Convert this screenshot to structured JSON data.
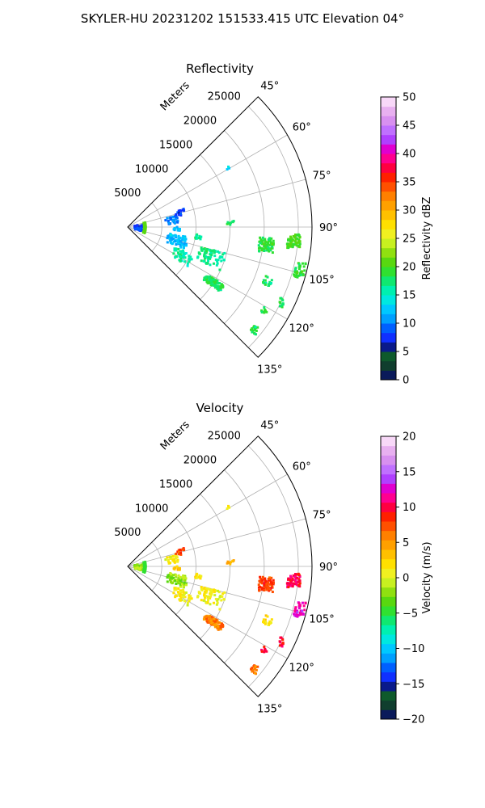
{
  "suptitle": "SKYLER-HU  20231202  151533.415 UTC Elevation 04°",
  "chart_data": [
    {
      "type": "polar-sector-scatter",
      "title": "Reflectivity",
      "radial_label": "Meters",
      "radial_ticks": [
        5000,
        10000,
        15000,
        20000,
        25000
      ],
      "radial_tick_labels": [
        "5000",
        "10000",
        "15000",
        "20000",
        "25000"
      ],
      "rlim": [
        0,
        27000
      ],
      "theta_lim_deg": [
        45,
        135
      ],
      "theta_zero": "north",
      "theta_direction": "clockwise",
      "theta_ticks_deg": [
        45,
        60,
        75,
        90,
        105,
        120,
        135
      ],
      "theta_tick_labels": [
        "45°",
        "60°",
        "75°",
        "90°",
        "105°",
        "120°",
        "135°"
      ],
      "grid": true,
      "colorbar": {
        "label": "Reflectivity dBZ",
        "vmin": 0,
        "vmax": 50,
        "ticks": [
          0,
          5,
          10,
          15,
          20,
          25,
          30,
          35,
          40,
          45,
          50
        ],
        "tick_labels": [
          "0",
          "5",
          "10",
          "15",
          "20",
          "25",
          "30",
          "35",
          "40",
          "45",
          "50"
        ],
        "colors": [
          "#0a1a5a",
          "#103e2e",
          "#0e5a2c",
          "#0a1a8a",
          "#1030ff",
          "#0060ff",
          "#00a0ff",
          "#00c8ff",
          "#00e8e0",
          "#00f0b0",
          "#10e870",
          "#30e030",
          "#58d810",
          "#90e010",
          "#c8f020",
          "#f0f020",
          "#ffe000",
          "#ffc000",
          "#ffa000",
          "#ff8000",
          "#ff5000",
          "#ff2000",
          "#ff0040",
          "#ff0090",
          "#e000d0",
          "#b040ff",
          "#c070ff",
          "#d890f0",
          "#e8b0f0",
          "#f8d8f8"
        ]
      },
      "clusters": [
        {
          "theta": 97.5,
          "r": 20500,
          "dr": 1100,
          "dt": 3.0,
          "n": 70,
          "v": 19
        },
        {
          "theta": 95,
          "r": 24500,
          "dr": 1000,
          "dt": 2.5,
          "n": 60,
          "v": 20
        },
        {
          "theta": 104,
          "r": 26000,
          "dr": 700,
          "dt": 2.5,
          "n": 40,
          "v": 19
        },
        {
          "theta": 111,
          "r": 22000,
          "dr": 600,
          "dt": 2.0,
          "n": 18,
          "v": 18
        },
        {
          "theta": 116,
          "r": 25000,
          "dr": 500,
          "dt": 1.5,
          "n": 12,
          "v": 18
        },
        {
          "theta": 121,
          "r": 23500,
          "dr": 400,
          "dt": 1.5,
          "n": 10,
          "v": 19
        },
        {
          "theta": 123,
          "r": 15000,
          "dr": 1500,
          "dt": 2.0,
          "n": 90,
          "v": 18
        },
        {
          "theta": 129,
          "r": 24000,
          "dr": 500,
          "dt": 1.5,
          "n": 18,
          "v": 18
        },
        {
          "theta": 110,
          "r": 13000,
          "dr": 2000,
          "dt": 5.0,
          "n": 70,
          "v": 17
        },
        {
          "theta": 105,
          "r": 7500,
          "dr": 1500,
          "dt": 6.0,
          "n": 80,
          "v": 12
        },
        {
          "theta": 118,
          "r": 9000,
          "dr": 1500,
          "dt": 5.0,
          "n": 45,
          "v": 16
        },
        {
          "theta": 98,
          "r": 10500,
          "dr": 500,
          "dt": 2.0,
          "n": 12,
          "v": 17
        },
        {
          "theta": 81,
          "r": 6500,
          "dr": 900,
          "dt": 5.0,
          "n": 30,
          "v": 10
        },
        {
          "theta": 75,
          "r": 8000,
          "dr": 700,
          "dt": 3.0,
          "n": 14,
          "v": 8
        },
        {
          "theta": 93,
          "r": 1800,
          "dr": 800,
          "dt": 14.0,
          "n": 70,
          "v": 8
        },
        {
          "theta": 88,
          "r": 15000,
          "dr": 600,
          "dt": 1.5,
          "n": 8,
          "v": 18
        },
        {
          "theta": 60,
          "r": 17000,
          "dr": 300,
          "dt": 1.0,
          "n": 3,
          "v": 14
        },
        {
          "theta": 92,
          "r": 7200,
          "dr": 500,
          "dt": 2.0,
          "n": 10,
          "v": 12
        }
      ],
      "range_ring": {
        "r": 2400,
        "theta_min": 75,
        "theta_max": 112,
        "v": 20
      }
    },
    {
      "type": "polar-sector-scatter",
      "title": "Velocity",
      "radial_label": "Meters",
      "radial_ticks": [
        5000,
        10000,
        15000,
        20000,
        25000
      ],
      "radial_tick_labels": [
        "5000",
        "10000",
        "15000",
        "20000",
        "25000"
      ],
      "rlim": [
        0,
        27000
      ],
      "theta_lim_deg": [
        45,
        135
      ],
      "theta_zero": "north",
      "theta_direction": "clockwise",
      "theta_ticks_deg": [
        45,
        60,
        75,
        90,
        105,
        120,
        135
      ],
      "theta_tick_labels": [
        "45°",
        "60°",
        "75°",
        "90°",
        "105°",
        "120°",
        "135°"
      ],
      "grid": true,
      "colorbar": {
        "label": "Velocity (m/s)",
        "vmin": -20,
        "vmax": 20,
        "ticks": [
          -20,
          -15,
          -10,
          -5,
          0,
          5,
          10,
          15,
          20
        ],
        "tick_labels": [
          "−20",
          "−15",
          "−10",
          "−5",
          "0",
          "5",
          "10",
          "15",
          "20"
        ],
        "colors": [
          "#0a1a5a",
          "#103e2e",
          "#0e5a2c",
          "#0a1a8a",
          "#1030ff",
          "#0060ff",
          "#00a0ff",
          "#00c8ff",
          "#00e8e0",
          "#00f0b0",
          "#10e870",
          "#30e030",
          "#58d810",
          "#90e010",
          "#c8f020",
          "#f0f020",
          "#ffe000",
          "#ffc000",
          "#ffa000",
          "#ff8000",
          "#ff5000",
          "#ff2000",
          "#ff0040",
          "#ff0090",
          "#e000d0",
          "#b040ff",
          "#c070ff",
          "#d890f0",
          "#e8b0f0",
          "#f8d8f8"
        ]
      },
      "clusters": [
        {
          "theta": 97.5,
          "r": 20500,
          "dr": 1100,
          "dt": 3.0,
          "n": 70,
          "v": 8
        },
        {
          "theta": 95,
          "r": 24500,
          "dr": 1000,
          "dt": 2.5,
          "n": 60,
          "v": 10
        },
        {
          "theta": 104,
          "r": 26000,
          "dr": 700,
          "dt": 2.5,
          "n": 40,
          "v": 12
        },
        {
          "theta": 111,
          "r": 22000,
          "dr": 600,
          "dt": 2.0,
          "n": 18,
          "v": 2
        },
        {
          "theta": 116,
          "r": 25000,
          "dr": 500,
          "dt": 1.5,
          "n": 12,
          "v": 10
        },
        {
          "theta": 121,
          "r": 23500,
          "dr": 400,
          "dt": 1.5,
          "n": 10,
          "v": 10
        },
        {
          "theta": 123,
          "r": 15000,
          "dr": 1500,
          "dt": 2.0,
          "n": 90,
          "v": 6
        },
        {
          "theta": 129,
          "r": 24000,
          "dr": 500,
          "dt": 1.5,
          "n": 18,
          "v": 6
        },
        {
          "theta": 110,
          "r": 13000,
          "dr": 2000,
          "dt": 5.0,
          "n": 70,
          "v": 1
        },
        {
          "theta": 105,
          "r": 7500,
          "dr": 1500,
          "dt": 6.0,
          "n": 80,
          "v": -2
        },
        {
          "theta": 118,
          "r": 9000,
          "dr": 1500,
          "dt": 5.0,
          "n": 45,
          "v": 1
        },
        {
          "theta": 98,
          "r": 10500,
          "dr": 500,
          "dt": 2.0,
          "n": 12,
          "v": 2
        },
        {
          "theta": 81,
          "r": 6500,
          "dr": 900,
          "dt": 5.0,
          "n": 30,
          "v": 1
        },
        {
          "theta": 75,
          "r": 8000,
          "dr": 700,
          "dt": 3.0,
          "n": 14,
          "v": 8
        },
        {
          "theta": 93,
          "r": 1800,
          "dr": 800,
          "dt": 14.0,
          "n": 70,
          "v": -2
        },
        {
          "theta": 88,
          "r": 15000,
          "dr": 600,
          "dt": 1.5,
          "n": 8,
          "v": 4
        },
        {
          "theta": 60,
          "r": 17000,
          "dr": 300,
          "dt": 1.0,
          "n": 3,
          "v": 2
        },
        {
          "theta": 92,
          "r": 7200,
          "dr": 500,
          "dt": 2.0,
          "n": 10,
          "v": 3
        }
      ],
      "range_ring": {
        "r": 2400,
        "theta_min": 75,
        "theta_max": 112,
        "v": -5
      }
    }
  ]
}
